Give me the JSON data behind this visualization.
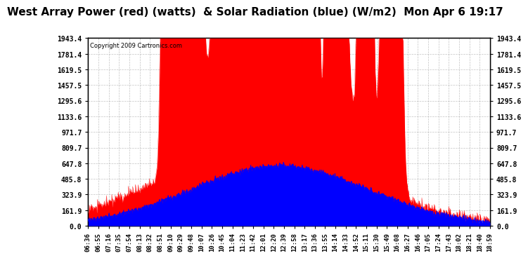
{
  "title": "West Array Power (red) (watts)  & Solar Radiation (blue) (W/m2)  Mon Apr 6 19:17",
  "copyright": "Copyright 2009 Cartronics.com",
  "bg_color": "#ffffff",
  "plot_bg_color": "#ffffff",
  "grid_color": "#aaaaaa",
  "y_ticks": [
    0.0,
    161.9,
    323.9,
    485.8,
    647.8,
    809.7,
    971.7,
    1133.6,
    1295.6,
    1457.5,
    1619.5,
    1781.4,
    1943.4
  ],
  "ymax": 1943.4,
  "ymin": 0.0,
  "x_labels": [
    "06:36",
    "07:16",
    "07:54",
    "08:32",
    "09:10",
    "09:48",
    "10:26",
    "11:04",
    "11:42",
    "12:20",
    "12:58",
    "13:36",
    "14:14",
    "14:52",
    "15:30",
    "16:08",
    "16:46",
    "17:24",
    "18:02",
    "18:40"
  ],
  "x_labels_full": [
    "06:36",
    "06:55",
    "07:16",
    "07:35",
    "07:54",
    "08:13",
    "08:32",
    "08:51",
    "09:10",
    "09:29",
    "09:48",
    "10:07",
    "10:26",
    "10:45",
    "11:04",
    "11:23",
    "11:42",
    "12:01",
    "12:20",
    "12:39",
    "12:58",
    "13:17",
    "13:36",
    "13:55",
    "14:14",
    "14:33",
    "14:52",
    "15:11",
    "15:30",
    "15:49",
    "16:08",
    "16:27",
    "16:46",
    "17:05",
    "17:24",
    "17:43",
    "18:02",
    "18:21",
    "18:40",
    "18:59"
  ],
  "title_fontsize": 11,
  "tick_fontsize": 7,
  "red_color": "#ff0000",
  "blue_color": "#0000ff"
}
